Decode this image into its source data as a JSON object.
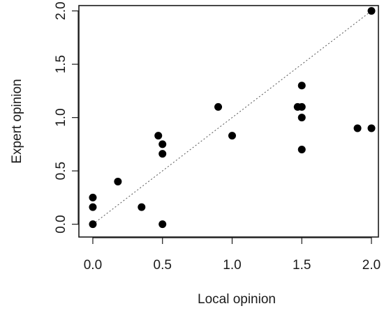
{
  "chart_data": {
    "type": "scatter",
    "xlabel": "Local opinion",
    "ylabel": "Expert opinion",
    "xlim": [
      -0.1,
      2.05
    ],
    "ylim": [
      -0.12,
      2.05
    ],
    "x_ticks": [
      "0.0",
      "0.5",
      "1.0",
      "1.5",
      "2.0"
    ],
    "y_ticks": [
      "0.0",
      "0.5",
      "1.0",
      "1.5",
      "2.0"
    ],
    "grid": false,
    "reference_line": {
      "from": [
        0,
        0
      ],
      "to": [
        2,
        2
      ],
      "style": "dotted"
    },
    "points": [
      {
        "x": 0.0,
        "y": 0.25
      },
      {
        "x": 0.0,
        "y": 0.16
      },
      {
        "x": 0.0,
        "y": 0.0
      },
      {
        "x": 0.18,
        "y": 0.4
      },
      {
        "x": 0.35,
        "y": 0.16
      },
      {
        "x": 0.47,
        "y": 0.83
      },
      {
        "x": 0.5,
        "y": 0.75
      },
      {
        "x": 0.5,
        "y": 0.66
      },
      {
        "x": 0.5,
        "y": 0.0
      },
      {
        "x": 0.9,
        "y": 1.1
      },
      {
        "x": 1.0,
        "y": 0.83
      },
      {
        "x": 1.47,
        "y": 1.1
      },
      {
        "x": 1.5,
        "y": 1.1
      },
      {
        "x": 1.5,
        "y": 1.3
      },
      {
        "x": 1.5,
        "y": 1.0
      },
      {
        "x": 1.5,
        "y": 0.7
      },
      {
        "x": 1.9,
        "y": 0.9
      },
      {
        "x": 2.0,
        "y": 0.9
      },
      {
        "x": 2.0,
        "y": 2.0
      }
    ]
  }
}
